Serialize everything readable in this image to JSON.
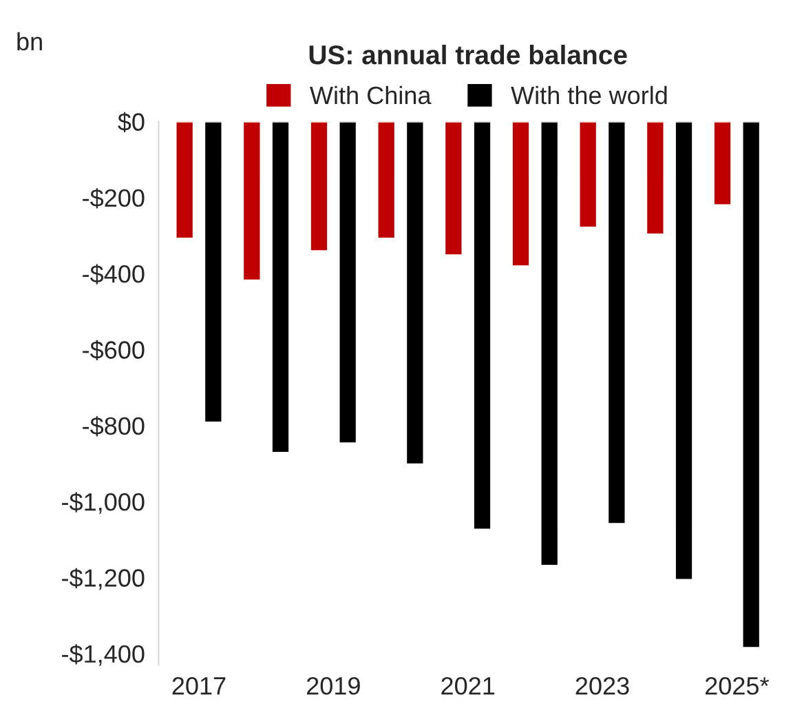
{
  "chart_data": {
    "type": "bar",
    "title": "US: annual trade balance",
    "ylabel": "bn",
    "categories": [
      "2017",
      null,
      "2019",
      null,
      "2021",
      null,
      "2023",
      null,
      "2025*"
    ],
    "series": [
      {
        "name": "With China",
        "color": "#c00000",
        "values": [
          -308,
          -418,
          -341,
          -308,
          -352,
          -381,
          -279,
          -297,
          -220
        ]
      },
      {
        "name": "With the world",
        "color": "#000000",
        "values": [
          -792,
          -872,
          -847,
          -902,
          -1074,
          -1169,
          -1059,
          -1206,
          -1385
        ]
      }
    ],
    "ylim": [
      -1430,
      0
    ],
    "yticks": [
      {
        "value": 0,
        "label": "$0"
      },
      {
        "value": -200,
        "label": "-$200"
      },
      {
        "value": -400,
        "label": "-$400"
      },
      {
        "value": -600,
        "label": "-$600"
      },
      {
        "value": -800,
        "label": "-$800"
      },
      {
        "value": -1000,
        "label": "-$1,000"
      },
      {
        "value": -1200,
        "label": "-$1,200"
      },
      {
        "value": -1400,
        "label": "-$1,400"
      }
    ],
    "grid": false,
    "legend": "top"
  }
}
